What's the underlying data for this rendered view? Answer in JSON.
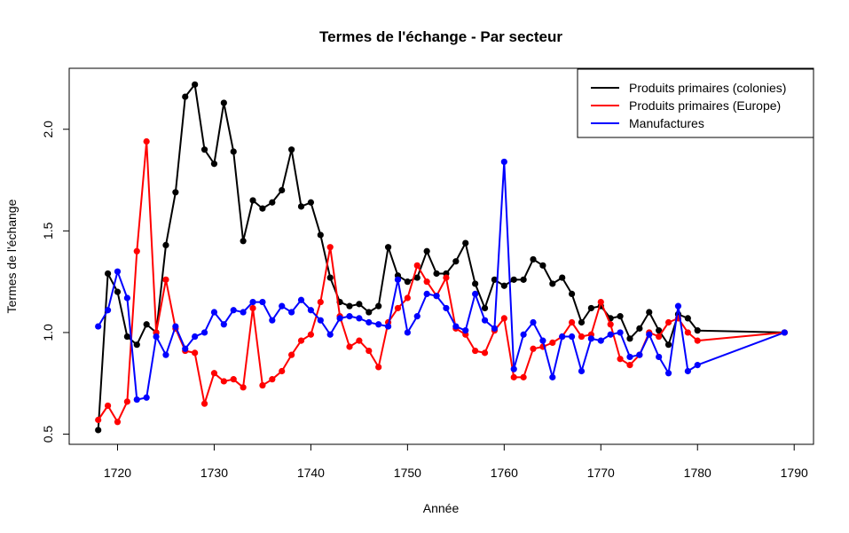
{
  "chart_data": {
    "type": "line",
    "title": "Termes de l'échange - Par secteur",
    "xlabel": "Année",
    "ylabel": "Termes de l'échange",
    "xlim": [
      1715,
      1792
    ],
    "ylim": [
      0.45,
      2.3
    ],
    "x_ticks": [
      1720,
      1730,
      1740,
      1750,
      1760,
      1770,
      1780,
      1790
    ],
    "y_ticks": [
      0.5,
      1.0,
      1.5,
      2.0
    ],
    "y_tick_labels": [
      "0.5",
      "1.0",
      "1.5",
      "2.0"
    ],
    "legend_position": "top-right",
    "grid": false,
    "series": [
      {
        "name": "Produits primaires (colonies)",
        "color": "#000000",
        "points": [
          [
            1718,
            0.52
          ],
          [
            1719,
            1.29
          ],
          [
            1720,
            1.2
          ],
          [
            1721,
            0.98
          ],
          [
            1722,
            0.94
          ],
          [
            1723,
            1.04
          ],
          [
            1724,
            1.0
          ],
          [
            1725,
            1.43
          ],
          [
            1726,
            1.69
          ],
          [
            1727,
            2.16
          ],
          [
            1728,
            2.22
          ],
          [
            1729,
            1.9
          ],
          [
            1730,
            1.83
          ],
          [
            1731,
            2.13
          ],
          [
            1732,
            1.89
          ],
          [
            1733,
            1.45
          ],
          [
            1734,
            1.65
          ],
          [
            1735,
            1.61
          ],
          [
            1736,
            1.64
          ],
          [
            1737,
            1.7
          ],
          [
            1738,
            1.9
          ],
          [
            1739,
            1.62
          ],
          [
            1740,
            1.64
          ],
          [
            1741,
            1.48
          ],
          [
            1742,
            1.27
          ],
          [
            1743,
            1.15
          ],
          [
            1744,
            1.13
          ],
          [
            1745,
            1.14
          ],
          [
            1746,
            1.1
          ],
          [
            1747,
            1.13
          ],
          [
            1748,
            1.42
          ],
          [
            1749,
            1.28
          ],
          [
            1750,
            1.25
          ],
          [
            1751,
            1.27
          ],
          [
            1752,
            1.4
          ],
          [
            1753,
            1.29
          ],
          [
            1754,
            1.29
          ],
          [
            1755,
            1.35
          ],
          [
            1756,
            1.44
          ],
          [
            1757,
            1.24
          ],
          [
            1758,
            1.12
          ],
          [
            1759,
            1.26
          ],
          [
            1760,
            1.23
          ],
          [
            1761,
            1.26
          ],
          [
            1762,
            1.26
          ],
          [
            1763,
            1.36
          ],
          [
            1764,
            1.33
          ],
          [
            1765,
            1.24
          ],
          [
            1766,
            1.27
          ],
          [
            1767,
            1.19
          ],
          [
            1768,
            1.05
          ],
          [
            1769,
            1.12
          ],
          [
            1770,
            1.13
          ],
          [
            1771,
            1.07
          ],
          [
            1772,
            1.08
          ],
          [
            1773,
            0.97
          ],
          [
            1774,
            1.02
          ],
          [
            1775,
            1.1
          ],
          [
            1776,
            1.01
          ],
          [
            1777,
            0.94
          ],
          [
            1778,
            1.09
          ],
          [
            1779,
            1.07
          ],
          [
            1780,
            1.01
          ],
          [
            1789,
            1.0
          ]
        ]
      },
      {
        "name": "Produits primaires (Europe)",
        "color": "#ff0000",
        "points": [
          [
            1718,
            0.57
          ],
          [
            1719,
            0.64
          ],
          [
            1720,
            0.56
          ],
          [
            1721,
            0.66
          ],
          [
            1722,
            1.4
          ],
          [
            1723,
            1.94
          ],
          [
            1724,
            1.0
          ],
          [
            1725,
            1.26
          ],
          [
            1726,
            1.02
          ],
          [
            1727,
            0.91
          ],
          [
            1728,
            0.9
          ],
          [
            1729,
            0.65
          ],
          [
            1730,
            0.8
          ],
          [
            1731,
            0.76
          ],
          [
            1732,
            0.77
          ],
          [
            1733,
            0.73
          ],
          [
            1734,
            1.12
          ],
          [
            1735,
            0.74
          ],
          [
            1736,
            0.77
          ],
          [
            1737,
            0.81
          ],
          [
            1738,
            0.89
          ],
          [
            1739,
            0.96
          ],
          [
            1740,
            0.99
          ],
          [
            1741,
            1.15
          ],
          [
            1742,
            1.42
          ],
          [
            1743,
            1.08
          ],
          [
            1744,
            0.93
          ],
          [
            1745,
            0.96
          ],
          [
            1746,
            0.91
          ],
          [
            1747,
            0.83
          ],
          [
            1748,
            1.05
          ],
          [
            1749,
            1.12
          ],
          [
            1750,
            1.17
          ],
          [
            1751,
            1.33
          ],
          [
            1752,
            1.25
          ],
          [
            1753,
            1.18
          ],
          [
            1754,
            1.27
          ],
          [
            1755,
            1.02
          ],
          [
            1756,
            0.99
          ],
          [
            1757,
            0.91
          ],
          [
            1758,
            0.9
          ],
          [
            1759,
            1.01
          ],
          [
            1760,
            1.07
          ],
          [
            1761,
            0.78
          ],
          [
            1762,
            0.78
          ],
          [
            1763,
            0.92
          ],
          [
            1764,
            0.93
          ],
          [
            1765,
            0.95
          ],
          [
            1766,
            0.98
          ],
          [
            1767,
            1.05
          ],
          [
            1768,
            0.98
          ],
          [
            1769,
            0.99
          ],
          [
            1770,
            1.15
          ],
          [
            1771,
            1.04
          ],
          [
            1772,
            0.87
          ],
          [
            1773,
            0.84
          ],
          [
            1774,
            0.89
          ],
          [
            1775,
            1.0
          ],
          [
            1776,
            0.98
          ],
          [
            1777,
            1.05
          ],
          [
            1778,
            1.07
          ],
          [
            1779,
            1.0
          ],
          [
            1780,
            0.96
          ],
          [
            1789,
            1.0
          ]
        ]
      },
      {
        "name": "Manufactures",
        "color": "#0000ff",
        "points": [
          [
            1718,
            1.03
          ],
          [
            1719,
            1.11
          ],
          [
            1720,
            1.3
          ],
          [
            1721,
            1.17
          ],
          [
            1722,
            0.67
          ],
          [
            1723,
            0.68
          ],
          [
            1724,
            0.98
          ],
          [
            1725,
            0.89
          ],
          [
            1726,
            1.03
          ],
          [
            1727,
            0.92
          ],
          [
            1728,
            0.98
          ],
          [
            1729,
            1.0
          ],
          [
            1730,
            1.1
          ],
          [
            1731,
            1.04
          ],
          [
            1732,
            1.11
          ],
          [
            1733,
            1.1
          ],
          [
            1734,
            1.15
          ],
          [
            1735,
            1.15
          ],
          [
            1736,
            1.06
          ],
          [
            1737,
            1.13
          ],
          [
            1738,
            1.1
          ],
          [
            1739,
            1.16
          ],
          [
            1740,
            1.11
          ],
          [
            1741,
            1.06
          ],
          [
            1742,
            0.99
          ],
          [
            1743,
            1.07
          ],
          [
            1744,
            1.08
          ],
          [
            1745,
            1.07
          ],
          [
            1746,
            1.05
          ],
          [
            1747,
            1.04
          ],
          [
            1748,
            1.03
          ],
          [
            1749,
            1.26
          ],
          [
            1750,
            1.0
          ],
          [
            1751,
            1.08
          ],
          [
            1752,
            1.19
          ],
          [
            1753,
            1.18
          ],
          [
            1754,
            1.12
          ],
          [
            1755,
            1.03
          ],
          [
            1756,
            1.01
          ],
          [
            1757,
            1.19
          ],
          [
            1758,
            1.06
          ],
          [
            1759,
            1.02
          ],
          [
            1760,
            1.84
          ],
          [
            1761,
            0.82
          ],
          [
            1762,
            0.99
          ],
          [
            1763,
            1.05
          ],
          [
            1764,
            0.96
          ],
          [
            1765,
            0.78
          ],
          [
            1766,
            0.98
          ],
          [
            1767,
            0.98
          ],
          [
            1768,
            0.81
          ],
          [
            1769,
            0.97
          ],
          [
            1770,
            0.96
          ],
          [
            1771,
            0.99
          ],
          [
            1772,
            1.0
          ],
          [
            1773,
            0.88
          ],
          [
            1774,
            0.89
          ],
          [
            1775,
            0.99
          ],
          [
            1776,
            0.88
          ],
          [
            1777,
            0.8
          ],
          [
            1778,
            1.13
          ],
          [
            1779,
            0.81
          ],
          [
            1780,
            0.84
          ],
          [
            1789,
            1.0
          ]
        ]
      }
    ]
  }
}
